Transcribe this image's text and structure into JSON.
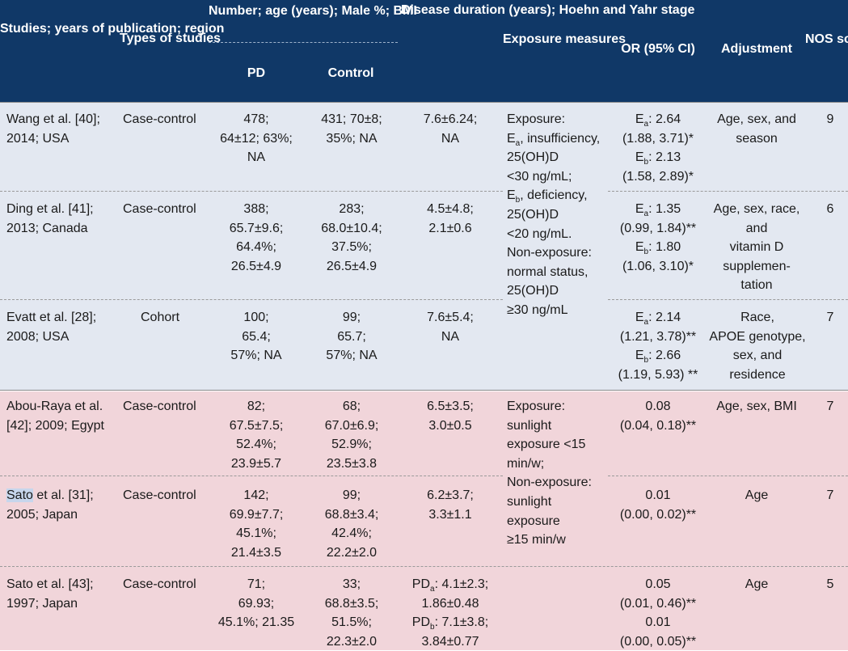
{
  "header": {
    "studies": "Studies; years\nof publication;\nregion",
    "types": "Types of\nstudies",
    "number": "Number; age (years);\nMale %; BMI",
    "pd": "PD",
    "control": "Control",
    "disease": "Disease\nduration\n(years);\nHoehn and\nYahr stage",
    "exposure": "Exposure\nmeasures",
    "or": "OR (95% CI)",
    "adjustment": "Adjustment",
    "nos": "NOS\nscore"
  },
  "rows": [
    {
      "study_pre": "Wang et al. [40];\n2014; USA",
      "study_hl": "",
      "study_post": "",
      "type": "Case-control",
      "pd": "478;\n64±12; 63%;\nNA",
      "control": "431; 70±8;\n35%; NA",
      "disease": "7.6±6.24;\nNA",
      "or": [
        [
          "E",
          "a",
          ": 2.64"
        ],
        [
          "(1.88, 3.71)*"
        ],
        [
          "E",
          "b",
          ": 2.13"
        ],
        [
          "(1.58, 2.89)*"
        ]
      ],
      "adjustment": "Age, sex, and\nseason",
      "nos": "9"
    },
    {
      "study_pre": "Ding et al. [41];\n2013; Canada",
      "study_hl": "",
      "study_post": "",
      "type": "Case-control",
      "pd": "388;\n65.7±9.6;\n64.4%;\n26.5±4.9",
      "control": "283;\n68.0±10.4;\n37.5%;\n26.5±4.9",
      "disease": "4.5±4.8;\n2.1±0.6",
      "or": [
        [
          "E",
          "a",
          ": 1.35"
        ],
        [
          "(0.99, 1.84)**"
        ],
        [
          "E",
          "b",
          ": 1.80"
        ],
        [
          "(1.06, 3.10)*"
        ]
      ],
      "adjustment": "Age, sex, race,\nand\nvitamin D\nsupplemen-\ntation",
      "nos": "6"
    },
    {
      "study_pre": "Evatt et al. [28];\n2008; USA",
      "study_hl": "",
      "study_post": "",
      "type": "Cohort",
      "pd": "100;\n65.4;\n57%; NA",
      "control": "99;\n65.7;\n57%; NA",
      "disease": "7.6±5.4;\nNA",
      "or": [
        [
          "E",
          "a",
          ": 2.14"
        ],
        [
          "(1.21, 3.78)**"
        ],
        [
          "E",
          "b",
          ": 2.66"
        ],
        [
          "(1.19, 5.93) **"
        ]
      ],
      "adjustment": "Race,\nAPOE genotype,\nsex, and\nresidence",
      "nos": "7"
    },
    {
      "study_pre": "Abou-Raya et al.\n[42]; 2009; Egypt",
      "study_hl": "",
      "study_post": "",
      "type": "Case-control",
      "pd": "82;\n67.5±7.5;\n52.4%;\n23.9±5.7",
      "control": "68;\n67.0±6.9;\n52.9%;\n23.5±3.8",
      "disease": "6.5±3.5;\n3.0±0.5",
      "or": [
        [
          "0.08"
        ],
        [
          "(0.04, 0.18)**"
        ]
      ],
      "adjustment": "Age, sex, BMI",
      "nos": "7"
    },
    {
      "study_pre": "",
      "study_hl": "Sato",
      "study_post": " et al. [31];\n2005; Japan",
      "type": "Case-control",
      "pd": "142;\n69.9±7.7;\n45.1%;\n21.4±3.5",
      "control": "99;\n68.8±3.4;\n42.4%;\n22.2±2.0",
      "disease": "6.2±3.7;\n3.3±1.1",
      "or": [
        [
          "0.01"
        ],
        [
          "(0.00, 0.02)**"
        ]
      ],
      "adjustment": "Age",
      "nos": "7"
    },
    {
      "study_pre": "Sato et al. [43];\n1997; Japan",
      "study_hl": "",
      "study_post": "",
      "type": "Case-control",
      "pd": "71;\n69.93;\n45.1%; 21.35",
      "control": "33;\n68.8±3.5;\n51.5%;\n22.3±2.0",
      "disease_lines": [
        [
          "PD",
          "a",
          ": 4.1±2.3;"
        ],
        [
          "1.86±0.48"
        ],
        [
          "PD",
          "b",
          ": 7.1±3.8;"
        ],
        [
          "3.84±0.77"
        ]
      ],
      "or": [
        [
          "0.05"
        ],
        [
          "(0.01, 0.46)**"
        ],
        [
          "0.01"
        ],
        [
          "(0.00, 0.05)**"
        ]
      ],
      "adjustment": "Age",
      "nos": "5"
    }
  ],
  "exposure_vitd": [
    [
      "Exposure:"
    ],
    [
      "E",
      "a",
      ", insufficiency,"
    ],
    [
      "25(OH)D"
    ],
    [
      "<30 ng/mL;"
    ],
    [
      "E",
      "b",
      ", deficiency,"
    ],
    [
      "25(OH)D"
    ],
    [
      "<20 ng/mL."
    ],
    [
      "Non-exposure:"
    ],
    [
      "normal status,"
    ],
    [
      "25(OH)D"
    ],
    [
      "≥30 ng/mL"
    ]
  ],
  "exposure_sun": "Exposure:\nsunlight\nexposure <15\nmin/w;\nNon-exposure:\nsunlight\nexposure\n≥15 min/w"
}
